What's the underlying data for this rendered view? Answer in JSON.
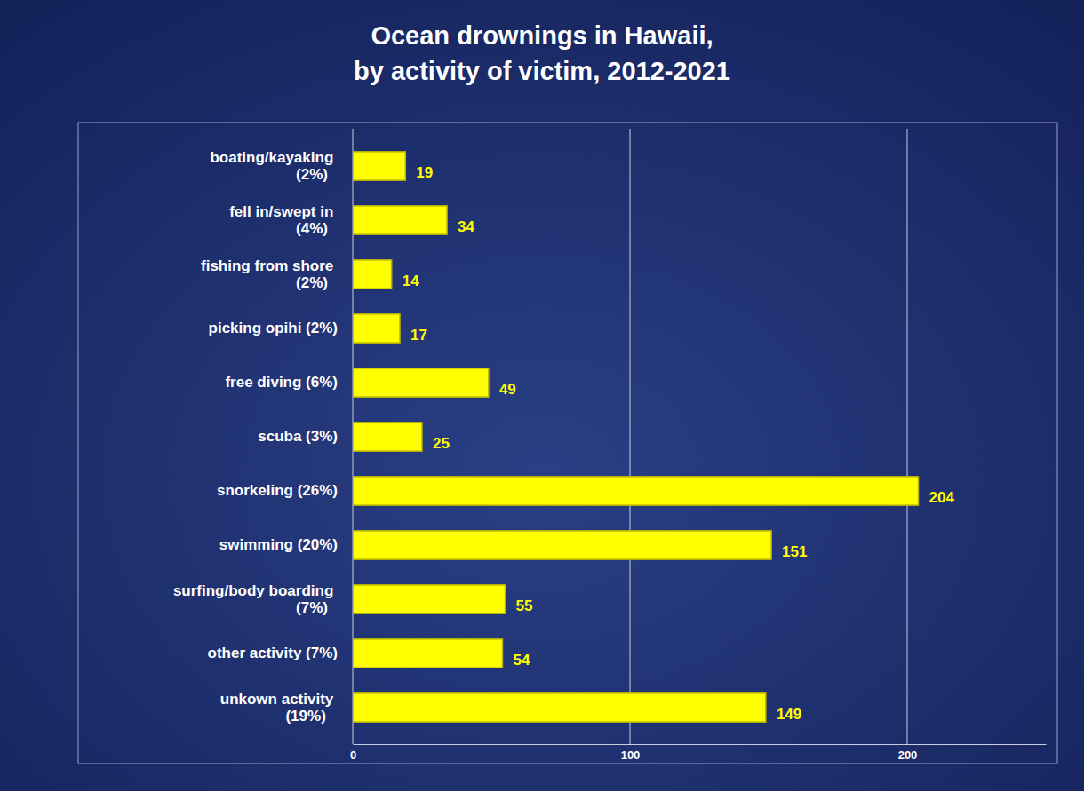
{
  "chart_data": {
    "type": "bar",
    "orientation": "horizontal",
    "title": "Ocean drownings in Hawaii, by activity of victim, 2012-2021",
    "categories": [
      "boating/kayaking (2%)",
      "fell in/swept in (4%)",
      "fishing from shore (2%)",
      "picking opihi (2%)",
      "free diving (6%)",
      "scuba (3%)",
      "snorkeling (26%)",
      "swimming (20%)",
      "surfing/body boarding (7%)",
      "other activity (7%)",
      "unkown activity (19%)"
    ],
    "values": [
      19,
      34,
      14,
      17,
      49,
      25,
      204,
      151,
      55,
      54,
      149
    ],
    "color": "#ffff00",
    "xlim": [
      0,
      250
    ],
    "xticks": [
      0,
      100,
      200
    ],
    "grid": true,
    "data_labels": true
  }
}
